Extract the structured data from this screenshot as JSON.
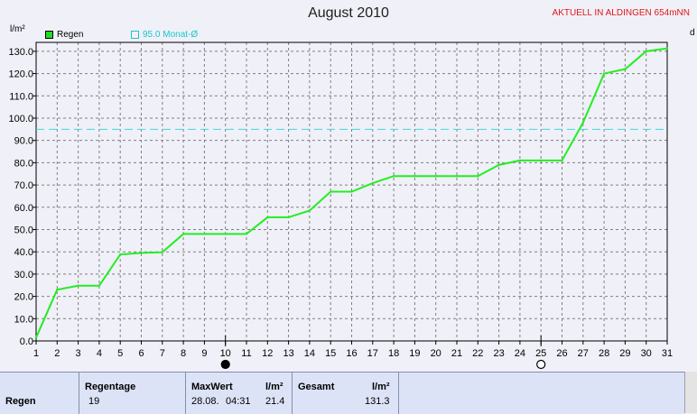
{
  "chart_data": {
    "type": "line",
    "title": "August 2010",
    "subtitle": "AKTUELL IN ALDINGEN 654mNN",
    "ylabel": "l/m²",
    "secondary_label": "d",
    "x": [
      1,
      2,
      3,
      4,
      5,
      6,
      7,
      8,
      9,
      10,
      11,
      12,
      13,
      14,
      15,
      16,
      17,
      18,
      19,
      20,
      21,
      22,
      23,
      24,
      25,
      26,
      27,
      28,
      29,
      30,
      31
    ],
    "x_ticks": [
      1,
      2,
      3,
      4,
      5,
      6,
      7,
      8,
      9,
      10,
      11,
      12,
      13,
      14,
      15,
      16,
      17,
      18,
      19,
      20,
      21,
      22,
      23,
      24,
      25,
      26,
      27,
      28,
      29,
      30,
      31
    ],
    "y_ticks": [
      "0.0",
      "10.0",
      "20.0",
      "30.0",
      "40.0",
      "50.0",
      "60.0",
      "70.0",
      "80.0",
      "90.0",
      "100.0",
      "110.0",
      "120.0",
      "130.0"
    ],
    "ylim": [
      0,
      134
    ],
    "grid": true,
    "legend_placement": "top-left",
    "series": [
      {
        "name": "Regen",
        "color": "#22ee22",
        "values": [
          1.5,
          23.0,
          24.8,
          24.8,
          38.8,
          39.5,
          39.8,
          48.0,
          48.0,
          48.0,
          48.0,
          55.5,
          55.5,
          58.5,
          67.0,
          67.0,
          70.8,
          74.0,
          74.0,
          74.0,
          74.0,
          74.0,
          79.0,
          81.0,
          81.0,
          81.0,
          98.0,
          120.0,
          122.0,
          130.0,
          131.3
        ]
      }
    ],
    "reference_line": {
      "name": "95.0 Monat-Ø",
      "value": 95.0,
      "color": "#40d8d8"
    },
    "moon_phases": [
      {
        "day": 10,
        "phase": "new-moon"
      },
      {
        "day": 25,
        "phase": "full-moon"
      }
    ]
  },
  "table": {
    "row_label": "Regen",
    "regentage_label": "Regentage",
    "regentage_value": "19",
    "maxwert_label": "MaxWert",
    "maxwert_unit": "l/m²",
    "maxwert_date": "28.08.",
    "maxwert_time": "04:31",
    "maxwert_value": "21.4",
    "gesamt_label": "Gesamt",
    "gesamt_unit": "l/m²",
    "gesamt_value": "131.3"
  }
}
